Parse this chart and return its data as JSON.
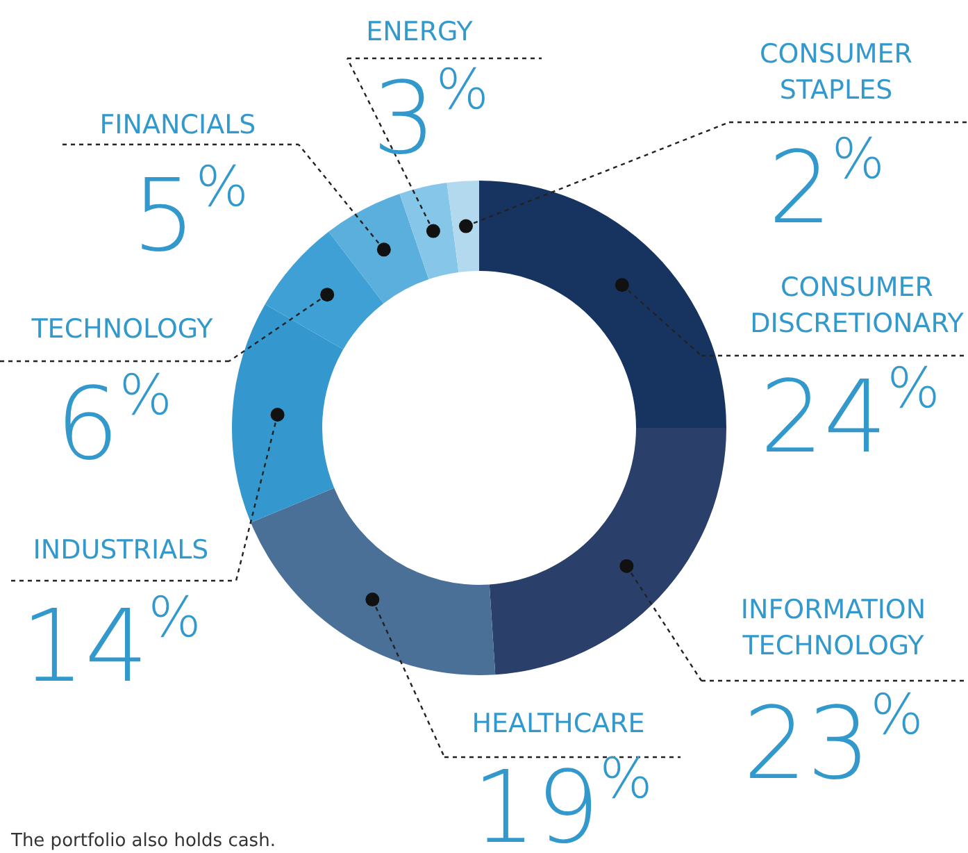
{
  "chart_data": {
    "type": "donut",
    "categories": [
      "CONSUMER DISCRETIONARY",
      "INFORMATION TECHNOLOGY",
      "HEALTHCARE",
      "INDUSTRIALS",
      "TECHNOLOGY",
      "FINANCIALS",
      "ENERGY",
      "CONSUMER STAPLES"
    ],
    "values": [
      24,
      23,
      19,
      14,
      6,
      5,
      3,
      2
    ],
    "value_labels": [
      "24$^{%}$",
      "23$^{%}$",
      "19$^{%}$",
      "14$^{%}$",
      "6$^{%}$",
      "5$^{%}$",
      "3$^{%}$",
      "2$^{%}$"
    ],
    "colors": [
      "#17335f",
      "#2a3f6a",
      "#4a7097",
      "#3498cf",
      "#3fa0d5",
      "#5aafdd",
      "#86c6e8",
      "#b3d9ef"
    ],
    "annotations": [
      "The portfolio also holds cash."
    ]
  }
}
